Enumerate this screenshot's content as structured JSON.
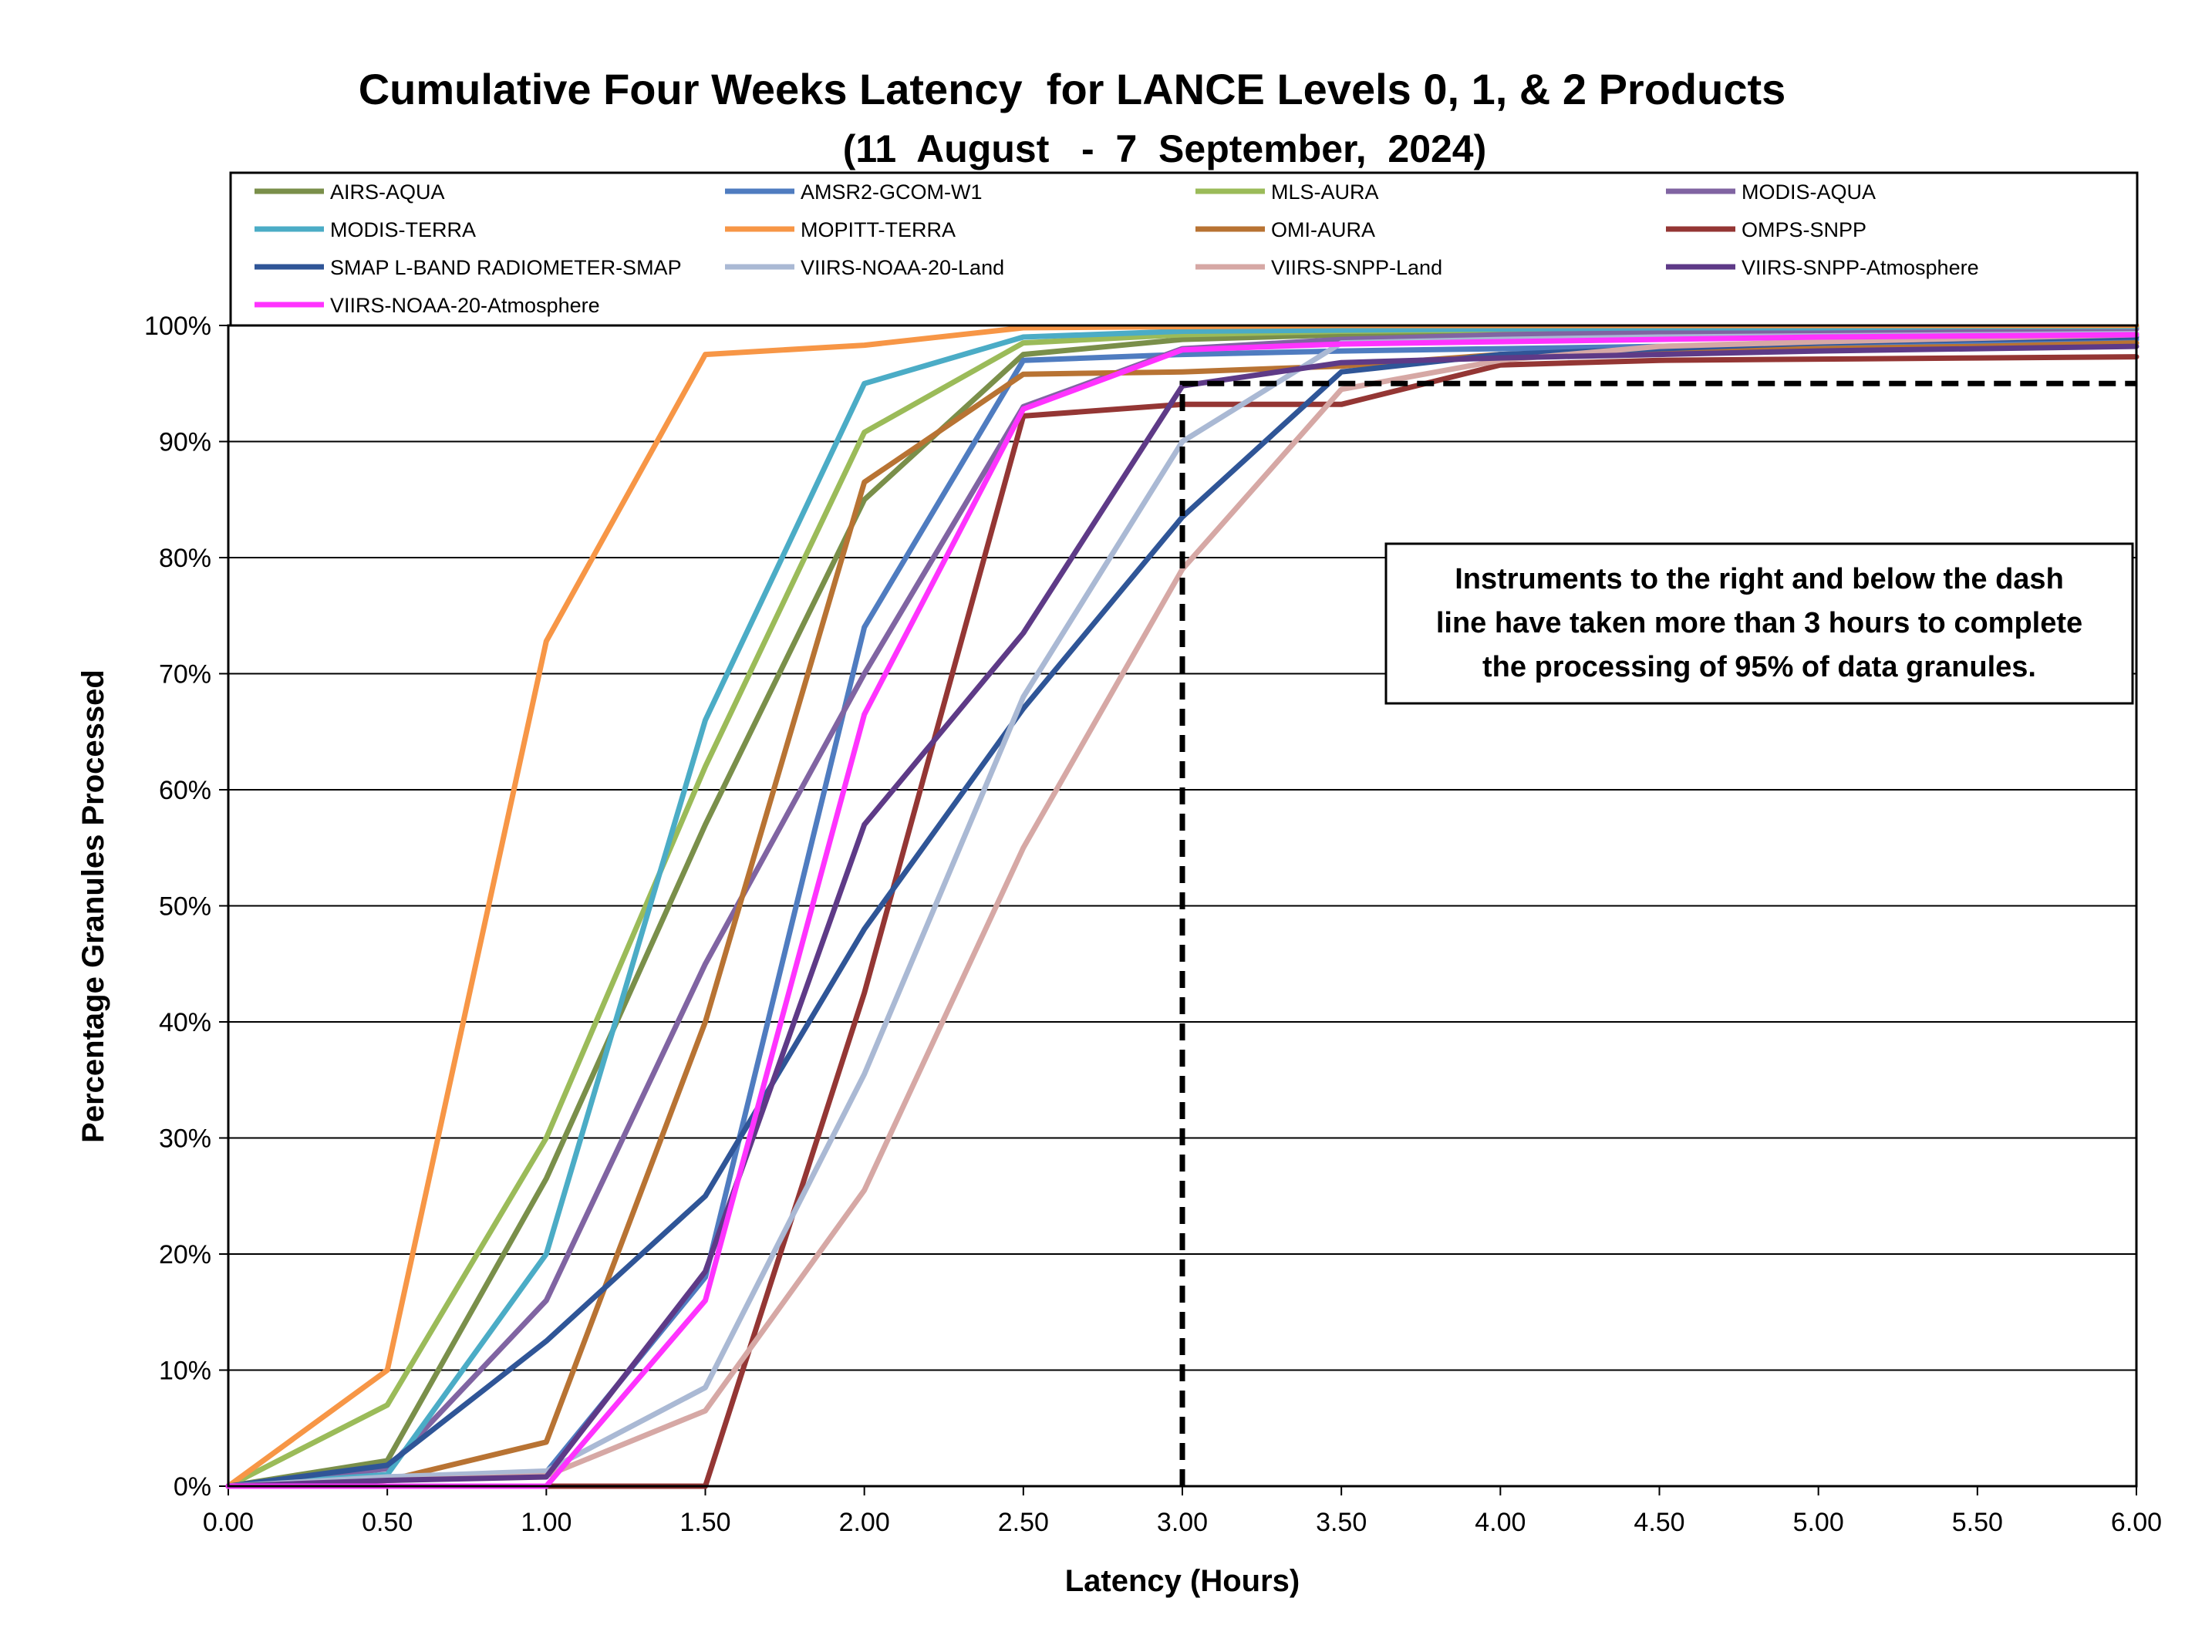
{
  "chart_data": {
    "type": "line",
    "title": "Cumulative Four Weeks Latency  for LANCE Levels 0, 1, & 2 Products",
    "subtitle": "(11  August   -  7  September,  2024)",
    "xlabel": "Latency (Hours)",
    "ylabel": "Percentage Granules Processed",
    "xlim": [
      0,
      6
    ],
    "ylim": [
      0,
      100
    ],
    "x_ticks": [
      "0.00",
      "0.50",
      "1.00",
      "1.50",
      "2.00",
      "2.50",
      "3.00",
      "3.50",
      "4.00",
      "4.50",
      "5.00",
      "5.50",
      "6.00"
    ],
    "y_ticks": [
      "0%",
      "10%",
      "20%",
      "30%",
      "40%",
      "50%",
      "60%",
      "70%",
      "80%",
      "90%",
      "100%"
    ],
    "grid": "horizontal",
    "legend_placement": "top",
    "x": [
      0,
      0.5,
      1,
      1.5,
      2,
      2.5,
      3,
      3.5,
      4,
      4.5,
      5,
      5.5,
      6
    ],
    "series": [
      {
        "name": "AIRS-AQUA",
        "color": "#7a8f4a",
        "values": [
          0,
          2.2,
          26.5,
          57,
          85,
          97.5,
          98.8,
          99.2,
          99.4,
          99.5,
          99.6,
          99.7,
          99.8
        ]
      },
      {
        "name": "AMSR2-GCOM-W1",
        "color": "#4f7cc0",
        "values": [
          0,
          0.8,
          1.2,
          18,
          74,
          97,
          97.5,
          97.8,
          98,
          98.2,
          98.4,
          98.6,
          98.8
        ]
      },
      {
        "name": "MLS-AURA",
        "color": "#9bbb59",
        "values": [
          0,
          7,
          30,
          62,
          90.8,
          98.5,
          99.2,
          99.5,
          99.6,
          99.7,
          99.8,
          99.8,
          99.9
        ]
      },
      {
        "name": "MODIS-AQUA",
        "color": "#8064a2",
        "values": [
          0,
          1.5,
          16,
          45,
          70,
          93,
          98,
          98.8,
          99.2,
          99.4,
          99.5,
          99.6,
          99.7
        ]
      },
      {
        "name": "MODIS-TERRA",
        "color": "#4bacc6",
        "values": [
          0,
          1,
          20,
          66,
          95,
          99,
          99.5,
          99.6,
          99.7,
          99.8,
          99.8,
          99.9,
          99.9
        ]
      },
      {
        "name": "MOPITT-TERRA",
        "color": "#f79646",
        "values": [
          0,
          10,
          72.8,
          97.5,
          98.3,
          99.8,
          99.9,
          100,
          100,
          100,
          100,
          100,
          100
        ]
      },
      {
        "name": "OMI-AURA",
        "color": "#b87333",
        "values": [
          0,
          0.5,
          3.8,
          40,
          86.5,
          95.8,
          96,
          96.5,
          97.5,
          97.8,
          98,
          98.2,
          98.5
        ]
      },
      {
        "name": "OMPS-SNPP",
        "color": "#943634",
        "values": [
          0,
          0,
          0,
          0,
          42.5,
          92.2,
          93.2,
          93.2,
          96.6,
          97,
          97.1,
          97.2,
          97.3
        ]
      },
      {
        "name": "SMAP L-BAND RADIOMETER-SMAP",
        "color": "#2f5597",
        "values": [
          0,
          1.8,
          12.5,
          25,
          48,
          67,
          83.5,
          96,
          97.5,
          98,
          98.5,
          98.8,
          99
        ]
      },
      {
        "name": "VIIRS-NOAA-20-Land",
        "color": "#aab9d4",
        "values": [
          0,
          0.8,
          1.3,
          8.5,
          35.5,
          68,
          90,
          98.5,
          98.8,
          99,
          99.1,
          99.2,
          99.3
        ]
      },
      {
        "name": "VIIRS-SNPP-Land",
        "color": "#d6a8a5",
        "values": [
          0,
          0.5,
          0.9,
          6.5,
          25.5,
          55,
          79,
          94.5,
          97,
          98.2,
          98.6,
          98.9,
          99.2
        ]
      },
      {
        "name": "VIIRS-SNPP-Atmosphere",
        "color": "#5e3a87",
        "values": [
          0,
          0.5,
          0.8,
          18.5,
          57,
          73.5,
          94.8,
          96.8,
          97.2,
          97.5,
          97.8,
          98,
          98.2
        ]
      },
      {
        "name": "VIIRS-NOAA-20-Atmosphere",
        "color": "#ff33ff",
        "values": [
          0,
          0,
          0,
          16,
          66.5,
          92.8,
          97.9,
          98.4,
          98.6,
          98.8,
          99,
          99.1,
          99.2
        ]
      }
    ],
    "threshold": {
      "x": 3.0,
      "y": 95
    },
    "annotation": [
      "Instruments to the right and below the dash",
      "line have taken more than 3 hours to complete",
      "the processing of 95% of data granules."
    ]
  }
}
